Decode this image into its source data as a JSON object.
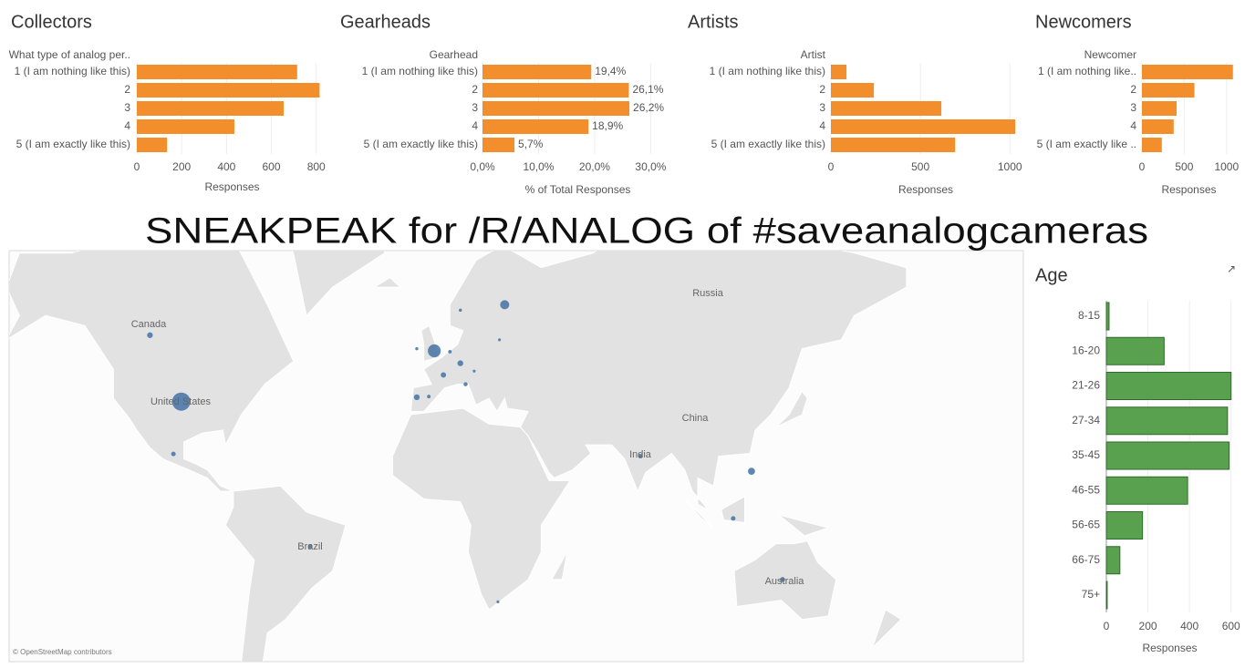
{
  "chart_data": [
    {
      "type": "bar",
      "title": "Collectors",
      "y_label": "What type of analog per..",
      "x_label": "Responses",
      "categories": [
        "1 (I am nothing like this)",
        "2",
        "3",
        "4",
        "5 (I am exactly like this)"
      ],
      "values": [
        715,
        815,
        655,
        435,
        135
      ],
      "color": "#f28e2b",
      "xlim": [
        0,
        850
      ],
      "xticks": [
        0,
        200,
        400,
        600,
        800
      ]
    },
    {
      "type": "bar",
      "title": "Gearheads",
      "y_label": "Gearhead",
      "x_label": "% of Total Responses",
      "categories": [
        "1 (I am nothing like this)",
        "2",
        "3",
        "4",
        "5 (I am exactly like this)"
      ],
      "values": [
        19.4,
        26.1,
        26.2,
        18.9,
        5.7
      ],
      "value_labels": [
        "19,4%",
        "26,1%",
        "26,2%",
        "18,9%",
        "5,7%"
      ],
      "color": "#f28e2b",
      "xlim": [
        0,
        34
      ],
      "xticks": [
        {
          "value": 0,
          "label": "0,0%"
        },
        {
          "value": 10,
          "label": "10,0%"
        },
        {
          "value": 20,
          "label": "20,0%"
        },
        {
          "value": 30,
          "label": "30,0%"
        }
      ]
    },
    {
      "type": "bar",
      "title": "Artists",
      "y_label": "Artist",
      "x_label": "Responses",
      "categories": [
        "1 (I am nothing like this)",
        "2",
        "3",
        "4",
        "5 (I am exactly like this)"
      ],
      "values": [
        87,
        240,
        617,
        1030,
        694
      ],
      "color": "#f28e2b",
      "xlim": [
        0,
        1060
      ],
      "xticks": [
        0,
        500,
        1000
      ]
    },
    {
      "type": "bar",
      "title": "Newcomers",
      "y_label": "Newcomer",
      "x_label": "Responses",
      "categories": [
        "1 (I am nothing like..",
        "2",
        "3",
        "4",
        "5 (I am exactly like .."
      ],
      "values": [
        1075,
        620,
        410,
        375,
        235
      ],
      "color": "#f28e2b",
      "xlim": [
        0,
        1110
      ],
      "xticks": [
        0,
        500,
        1000
      ]
    },
    {
      "type": "map",
      "title": "SNEAKPEAK for /R/ANALOG of #saveanalogcameras",
      "region_labels": [
        "Canada",
        "United States",
        "Russia",
        "China",
        "India",
        "Brazil",
        "Australia"
      ],
      "attribution": "© OpenStreetMap contributors",
      "color": "#4e79a7",
      "points": {
        "lon": [
          -98,
          -110,
          -1,
          26,
          9,
          -7.7,
          9,
          2.5,
          -7.7,
          -3.1,
          11,
          5,
          -101,
          -48.6,
          78,
          120.6,
          113.6,
          132.5,
          23.4,
          14.3,
          24
        ],
        "lat": [
          39,
          56,
          52.5,
          62,
          61,
          53,
          49.5,
          46.5,
          40.3,
          40.5,
          44,
          52.3,
          21.8,
          -13,
          21,
          15.5,
          -2.4,
          -25,
          -32.5,
          47.5,
          55
        ],
        "values": [
          400,
          40,
          200,
          100,
          12,
          12,
          40,
          35,
          40,
          15,
          20,
          15,
          25,
          25,
          25,
          60,
          25,
          30,
          10,
          10,
          10
        ]
      }
    },
    {
      "type": "bar",
      "title": "Age",
      "x_label": "Responses",
      "categories": [
        "8-15",
        "16-20",
        "21-26",
        "27-34",
        "35-45",
        "46-55",
        "56-65",
        "66-75",
        "75+"
      ],
      "values": [
        13,
        278,
        600,
        583,
        591,
        391,
        174,
        65,
        4
      ],
      "color": "#59a14f",
      "edge_color": "#2f6b2a",
      "xlim": [
        0,
        610
      ],
      "xticks": [
        0,
        200,
        400,
        600
      ],
      "grid": true
    }
  ]
}
